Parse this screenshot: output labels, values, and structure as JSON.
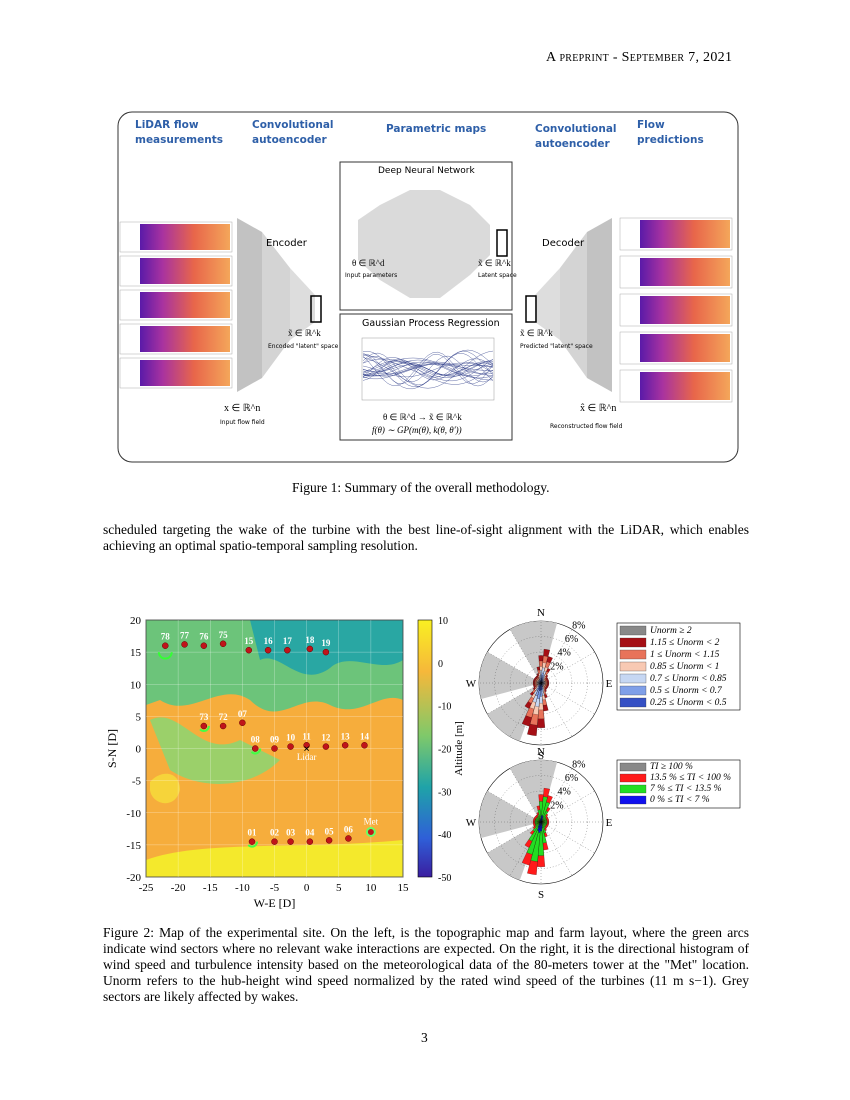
{
  "header": {
    "running_title": "A preprint - September 7, 2021"
  },
  "figure1": {
    "headings": [
      "LiDAR flow measurements",
      "Convolutional autoencoder",
      "Parametric maps",
      "Convolutional autoencoder",
      "Flow predictions"
    ],
    "dnn_title": "Deep Neural Network",
    "gpr_title": "Gaussian Process Regression",
    "encoder": "Encoder",
    "decoder": "Decoder",
    "theta_in": "θ ∈ ℝ^d",
    "theta_in_caption": "Input parameters",
    "latent_out": "x̃ ∈ ℝ^k",
    "latent_out_caption": "Latent space",
    "encoded": "x̃ ∈ ℝ^k",
    "encoded_caption": "Encoded \"latent\" space",
    "predicted": "x̃ ∈ ℝ^k",
    "predicted_caption": "Predicted \"latent\" space",
    "input": "x ∈ ℝ^n",
    "input_caption": "Input flow field",
    "output": "x̂ ∈ ℝ^n",
    "output_caption": "Reconstructed flow field",
    "mapping": "θ ∈ ℝ^d → x̃ ∈ ℝ^k",
    "gp": "f(θ) ∼ GP(m(θ), k(θ, θ′))",
    "caption": "Figure 1: Summary of the overall methodology."
  },
  "paragraph": "scheduled targeting the wake of the turbine with the best line-of-sight alignment with the LiDAR, which enables achieving an optimal spatio-temporal sampling resolution.",
  "figure2": {
    "map": {
      "xlabel": "W-E [D]",
      "ylabel": "S-N [D]",
      "xticks": [
        -25,
        -20,
        -15,
        -10,
        -5,
        0,
        5,
        10,
        15
      ],
      "yticks": [
        20,
        15,
        10,
        5,
        0,
        -5,
        -10,
        -15,
        -20
      ],
      "colorbar_label": "Altitude [m]",
      "colorbar_ticks": [
        10,
        0,
        -10,
        -20,
        -30,
        -40,
        -50
      ],
      "turbines": [
        "78",
        "77",
        "76",
        "75",
        "15",
        "16",
        "17",
        "18",
        "19",
        "73",
        "72",
        "07",
        "08",
        "09",
        "10",
        "11",
        "12",
        "13",
        "14",
        "01",
        "02",
        "03",
        "04",
        "05",
        "06"
      ],
      "lidar": "Lidar",
      "met": "Met"
    },
    "rose_speed": {
      "directions": [
        "N",
        "E",
        "S",
        "W"
      ],
      "rings": [
        "2%",
        "4%",
        "6%",
        "8%"
      ],
      "legend": [
        "Unorm ≥ 2",
        "1.15 ≤ Unorm < 2",
        "1 ≤ Unorm < 1.15",
        "0.85 ≤ Unorm < 1",
        "0.7 ≤ Unorm < 0.85",
        "0.5 ≤ Unorm < 0.7",
        "0.25 ≤ Unorm < 0.5"
      ],
      "colors": [
        "#888888",
        "#a50f15",
        "#e8735a",
        "#f8c9b3",
        "#c6d7f3",
        "#7f9fe8",
        "#3550c4"
      ]
    },
    "rose_ti": {
      "directions": [
        "N",
        "E",
        "S",
        "W"
      ],
      "rings": [
        "2%",
        "4%",
        "6%",
        "8%"
      ],
      "legend": [
        "TI ≥ 100 %",
        "13.5 % ≤ TI < 100 %",
        "7 % ≤ TI < 13.5 %",
        "0 % ≤ TI < 7 %"
      ],
      "colors": [
        "#888888",
        "#ff1a1a",
        "#22dd22",
        "#1010ee"
      ]
    },
    "caption": "Figure 2: Map of the experimental site. On the left, is the topographic map and farm layout, where the green arcs indicate wind sectors where no relevant wake interactions are expected. On the right, it is the directional histogram of wind speed and turbulence intensity based on the meteorological data of the 80-meters tower at the \"Met\" location. Unorm refers to the hub-height wind speed normalized by the rated wind speed of the turbines (11 m s−1). Grey sectors are likely affected by wakes."
  },
  "footer": {
    "page_number": "3"
  }
}
